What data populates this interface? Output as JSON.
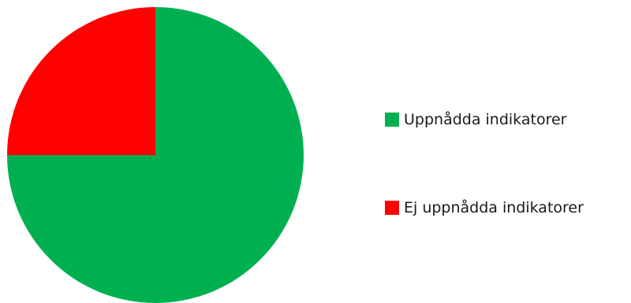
{
  "chart_data": {
    "type": "pie",
    "title": "",
    "categories": [
      "Uppnådda indikatorer",
      "Ej uppnådda indikatorer"
    ],
    "values": [
      75,
      25
    ],
    "colors": [
      "#00b050",
      "#ff0000"
    ],
    "legend_position": "right"
  }
}
